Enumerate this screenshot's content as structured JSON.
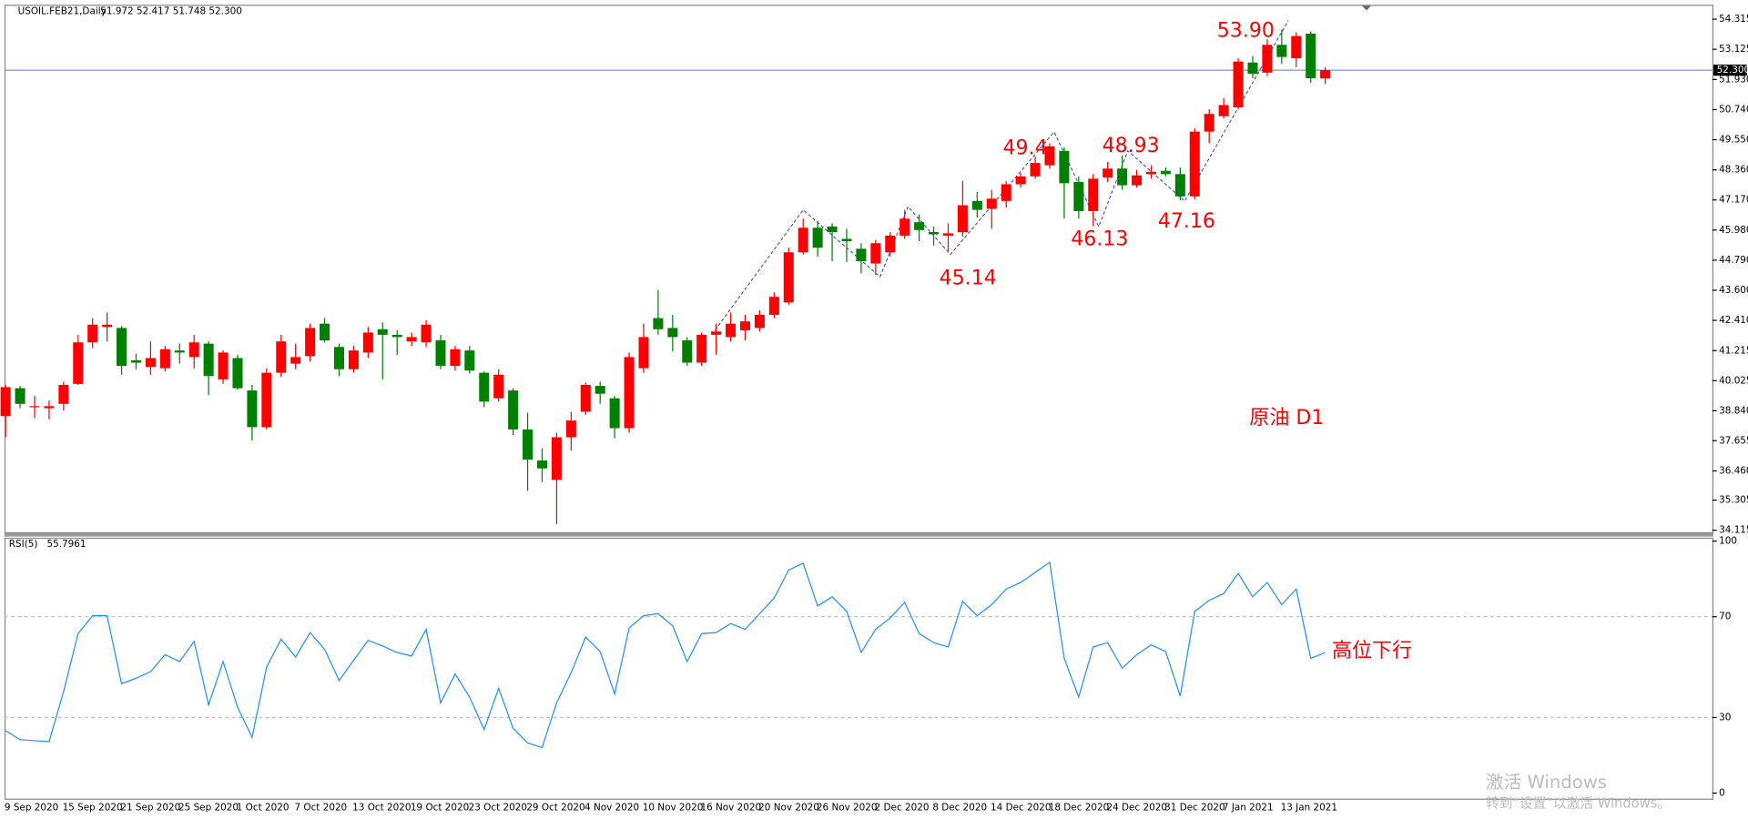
{
  "header": {
    "symbol": "USOIL.FEB21,Daily",
    "ohlc": "51.972 52.417 51.748 52.300"
  },
  "watermark": {
    "line1": "激活 Windows",
    "line2": "转到“设置”以激活 Windows。"
  },
  "chart_data": [
    {
      "type": "candlestick",
      "up_color": "#ff0000",
      "down_color": "#008000",
      "categories": [
        "9 Sep 2020",
        null,
        null,
        null,
        "15 Sep 2020",
        null,
        null,
        null,
        "21 Sep 2020",
        null,
        null,
        null,
        "25 Sep 2020",
        null,
        null,
        null,
        "1 Oct 2020",
        null,
        null,
        null,
        "7 Oct 2020",
        null,
        null,
        null,
        "13 Oct 2020",
        null,
        null,
        null,
        "19 Oct 2020",
        null,
        null,
        null,
        "23 Oct 2020",
        null,
        null,
        null,
        "29 Oct 2020",
        null,
        null,
        null,
        "4 Nov 2020",
        null,
        null,
        null,
        "10 Nov 2020",
        null,
        null,
        null,
        "16 Nov 2020",
        null,
        null,
        null,
        "20 Nov 2020",
        null,
        null,
        null,
        "26 Nov 2020",
        null,
        null,
        null,
        "2 Dec 2020",
        null,
        null,
        null,
        "8 Dec 2020",
        null,
        null,
        null,
        "14 Dec 2020",
        null,
        null,
        null,
        "18 Dec 2020",
        null,
        null,
        null,
        "24 Dec 2020",
        null,
        null,
        null,
        "31 Dec 2020",
        null,
        null,
        null,
        "7 Jan 2021",
        null,
        null,
        null,
        "13 Jan 2021",
        null,
        null,
        null
      ],
      "open": [
        38.63,
        39.73,
        38.98,
        38.94,
        39.11,
        39.9,
        41.54,
        42.15,
        42.11,
        40.83,
        40.57,
        40.52,
        41.22,
        40.96,
        41.49,
        40.08,
        40.92,
        39.64,
        38.19,
        40.34,
        40.7,
        41.0,
        42.28,
        41.36,
        40.48,
        41.14,
        42.06,
        41.84,
        41.58,
        41.54,
        41.62,
        40.61,
        41.22,
        40.34,
        39.33,
        39.64,
        38.1,
        36.87,
        36.11,
        37.79,
        38.8,
        39.82,
        39.33,
        38.15,
        40.52,
        42.5,
        42.11,
        41.62,
        40.74,
        41.84,
        41.75,
        42.02,
        42.11,
        42.63,
        43.12,
        45.1,
        46.07,
        46.12,
        45.63,
        45.24,
        44.66,
        45.1,
        45.76,
        46.29,
        45.9,
        45.76,
        45.9,
        47.13,
        46.82,
        47.13,
        47.79,
        48.1,
        48.54,
        49.11,
        47.88,
        46.73,
        48.06,
        48.41,
        47.75,
        48.19,
        48.32,
        48.19,
        47.31,
        49.87,
        50.48,
        50.83,
        52.6,
        52.2,
        53.3,
        52.77,
        53.74,
        51.972
      ],
      "high": [
        39.86,
        39.82,
        39.42,
        39.24,
        39.99,
        41.84,
        42.5,
        42.72,
        42.19,
        41.09,
        41.58,
        41.4,
        41.49,
        41.84,
        41.58,
        41.22,
        41.05,
        39.86,
        40.52,
        41.84,
        41.49,
        42.28,
        42.5,
        41.49,
        41.4,
        42.15,
        42.33,
        42.02,
        41.93,
        42.42,
        41.84,
        41.4,
        41.4,
        40.39,
        40.48,
        39.73,
        38.76,
        37.35,
        37.97,
        38.8,
        39.95,
        39.99,
        39.42,
        41.14,
        42.28,
        43.61,
        42.63,
        41.75,
        41.93,
        42.28,
        42.72,
        42.63,
        42.81,
        43.52,
        45.28,
        46.43,
        46.34,
        46.25,
        46.03,
        45.46,
        45.59,
        45.9,
        46.78,
        46.6,
        46.12,
        46.25,
        47.92,
        47.48,
        47.57,
        47.92,
        48.23,
        48.89,
        49.4,
        49.25,
        48.1,
        48.19,
        48.67,
        48.93,
        48.36,
        48.54,
        48.45,
        48.45,
        50.0,
        50.75,
        51.19,
        52.77,
        52.86,
        53.52,
        53.9,
        53.8,
        53.83,
        52.417
      ],
      "low": [
        37.79,
        38.94,
        38.54,
        38.5,
        38.85,
        39.86,
        41.31,
        41.58,
        40.26,
        40.48,
        40.26,
        40.39,
        40.7,
        40.52,
        39.46,
        39.9,
        39.68,
        37.66,
        38.1,
        40.17,
        40.48,
        40.79,
        41.54,
        40.21,
        40.34,
        40.92,
        40.08,
        41.05,
        41.4,
        41.36,
        40.48,
        40.43,
        40.3,
        38.98,
        39.2,
        37.88,
        35.67,
        36.02,
        34.35,
        37.26,
        38.67,
        39.11,
        37.75,
        37.97,
        40.34,
        41.84,
        41.18,
        40.61,
        40.61,
        41.05,
        41.58,
        41.62,
        41.97,
        42.5,
        43.03,
        45.01,
        44.93,
        44.75,
        44.71,
        44.27,
        44.22,
        44.93,
        45.63,
        45.54,
        45.37,
        45.14,
        45.72,
        46.47,
        46.03,
        46.87,
        47.66,
        48.01,
        48.41,
        46.43,
        46.43,
        46.13,
        47.88,
        47.57,
        47.66,
        48.01,
        48.1,
        47.16,
        47.2,
        49.42,
        50.39,
        50.75,
        51.98,
        52.07,
        52.55,
        52.42,
        51.8,
        51.748
      ],
      "close": [
        39.77,
        39.11,
        39.02,
        39.02,
        39.86,
        41.54,
        42.24,
        42.24,
        40.61,
        40.74,
        40.92,
        41.27,
        41.14,
        41.54,
        40.21,
        41.14,
        39.73,
        38.19,
        40.34,
        41.58,
        40.96,
        42.11,
        41.62,
        40.48,
        41.22,
        41.93,
        41.84,
        41.75,
        41.75,
        42.24,
        40.61,
        41.27,
        40.43,
        39.2,
        40.26,
        38.1,
        36.91,
        36.56,
        37.79,
        38.45,
        39.86,
        39.51,
        38.15,
        40.96,
        41.75,
        42.06,
        41.75,
        40.74,
        41.84,
        41.97,
        42.28,
        42.37,
        42.63,
        43.34,
        45.1,
        46.07,
        45.28,
        45.9,
        45.54,
        44.75,
        45.46,
        45.76,
        46.43,
        45.98,
        45.81,
        45.85,
        46.96,
        46.78,
        47.22,
        47.79,
        48.1,
        48.63,
        49.29,
        47.83,
        46.73,
        48.01,
        48.41,
        47.75,
        48.14,
        48.28,
        48.19,
        47.31,
        49.87,
        50.57,
        50.92,
        52.64,
        52.16,
        53.3,
        52.82,
        53.65,
        51.98,
        52.3
      ],
      "ylim": [
        34.04,
        54.84
      ],
      "yticks": [
        54.315,
        53.125,
        {
          "value": 51.93,
          "label": "51.930"
        },
        {
          "value": 50.74,
          "label": "50.740"
        },
        {
          "value": 49.55,
          "label": "49.550"
        },
        {
          "value": 48.36,
          "label": "48.360"
        },
        {
          "value": 47.17,
          "label": "47.170"
        },
        {
          "value": 45.98,
          "label": "45.980"
        },
        {
          "value": 44.79,
          "label": "44.790"
        },
        {
          "value": 43.6,
          "label": "43.600"
        },
        {
          "value": 42.41,
          "label": "42.410"
        },
        41.215,
        40.025,
        {
          "value": 38.84,
          "label": "38.840"
        },
        37.655,
        {
          "value": 36.46,
          "label": "36.460"
        },
        35.305,
        34.115
      ],
      "last_price": {
        "value": 52.3,
        "label": "52.300",
        "color": "#4a7bd0"
      },
      "annotations": [
        "53.90",
        "49.4",
        "48.93",
        "46.13",
        "47.16",
        "45.14",
        "原油 D1"
      ],
      "annotation_color": "#ff0000"
    },
    {
      "type": "line",
      "title": "RSI(5)",
      "color": "#1e90ff",
      "values": [
        24.8,
        21.2,
        20.8,
        20.4,
        40.3,
        63.3,
        70.4,
        70.4,
        43.4,
        45.6,
        48.2,
        54.9,
        52.2,
        60.2,
        35.0,
        52.2,
        34.1,
        22.1,
        50.0,
        61.1,
        54.0,
        63.7,
        57.1,
        44.7,
        52.7,
        60.6,
        58.4,
        55.8,
        54.4,
        65.0,
        35.8,
        47.3,
        38.1,
        25.2,
        41.6,
        25.7,
        19.9,
        18.1,
        35.8,
        47.8,
        61.9,
        56.2,
        39.4,
        65.5,
        70.4,
        71.2,
        66.4,
        52.2,
        63.3,
        63.7,
        67.3,
        65.0,
        71.2,
        77.4,
        88.5,
        91.2,
        74.3,
        77.9,
        72.1,
        55.8,
        65.0,
        69.5,
        75.7,
        63.3,
        59.7,
        58.0,
        76.1,
        70.4,
        74.8,
        81.0,
        83.6,
        87.6,
        91.6,
        53.5,
        38.1,
        58.0,
        59.7,
        49.6,
        54.9,
        58.8,
        56.2,
        38.5,
        72.1,
        76.5,
        79.2,
        87.2,
        77.9,
        83.6,
        74.8,
        81.0,
        53.5,
        55.7961
      ],
      "ylim": [
        -2.2,
        100.9
      ],
      "yticks": [
        100,
        70,
        30,
        0
      ],
      "levels": [
        70,
        30
      ],
      "annotation": "高位下行"
    }
  ]
}
